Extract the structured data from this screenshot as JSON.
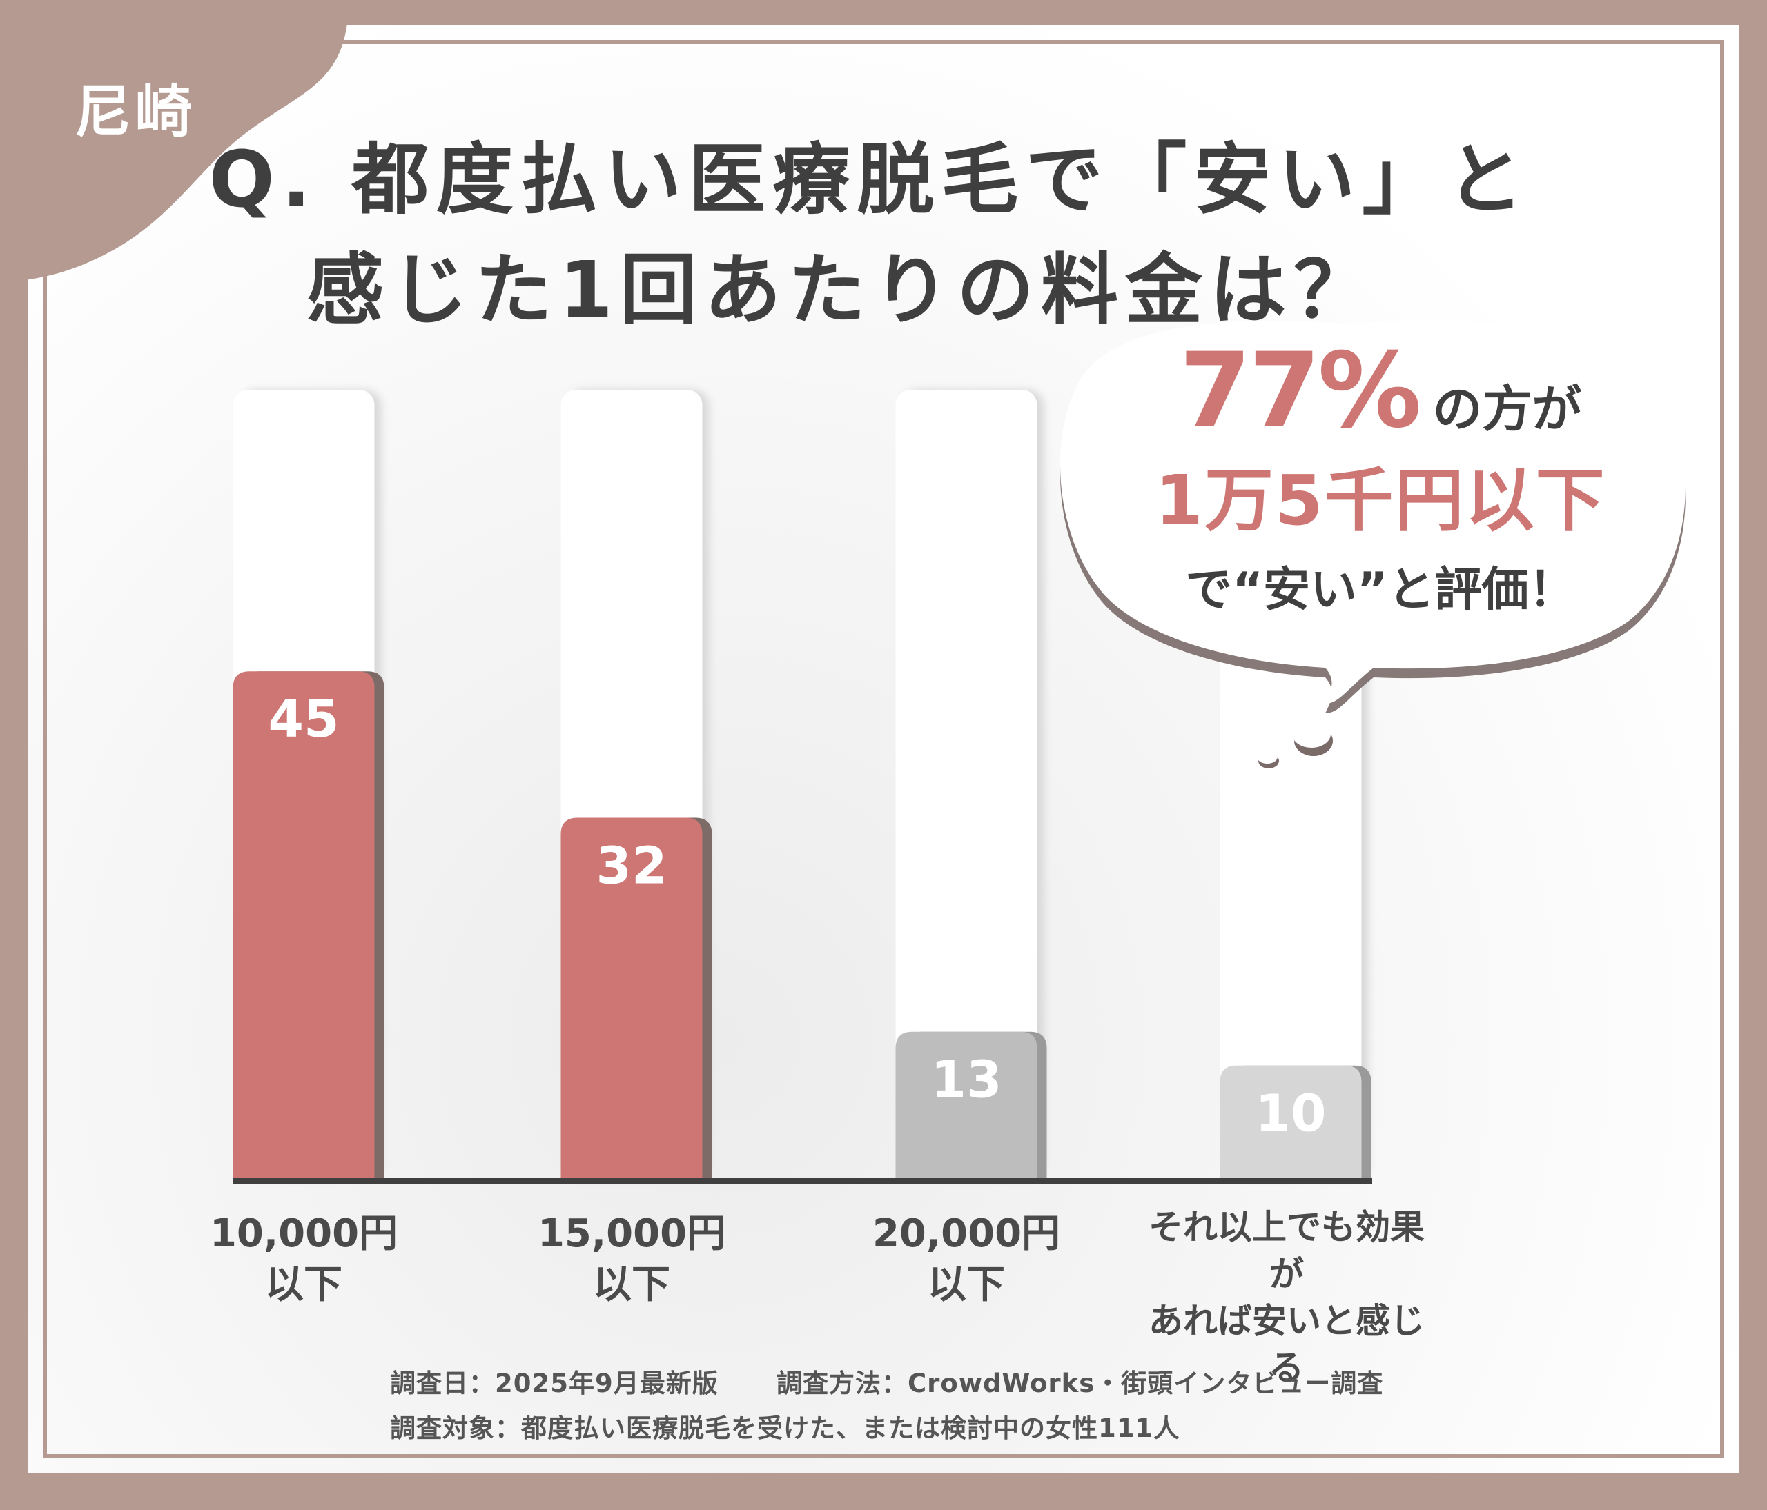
{
  "region_label": "尼崎",
  "title": {
    "line1": "Q. 都度払い医療脱毛で「安い」と",
    "line2": "感じた1回あたりの料金は？"
  },
  "callout": {
    "percent": "77%",
    "line1_rest": "の方が",
    "line2": "1万5千円以下",
    "line3": "で“安い”と評価！"
  },
  "chart_data": {
    "type": "bar",
    "categories": [
      "10,000円以下",
      "15,000円以下",
      "20,000円以下",
      "それ以上でも効果があれば安いと感じる"
    ],
    "category_lines": [
      [
        "10,000円",
        "以下"
      ],
      [
        "15,000円",
        "以下"
      ],
      [
        "20,000円",
        "以下"
      ],
      [
        "それ以上でも効果が",
        "あれば安いと感じる"
      ]
    ],
    "values": [
      45,
      32,
      13,
      10
    ],
    "value_labels": [
      "45",
      "32",
      "13",
      "10"
    ],
    "ylim": [
      0,
      100
    ],
    "grid": false,
    "colors": [
      "#cd7673",
      "#cd7673",
      "#bdbdbd",
      "#d6d6d6"
    ]
  },
  "footer": {
    "line1a": "調査日：2025年9月最新版",
    "line1b": "調査方法：CrowdWorks・街頭インタビュー調査",
    "line2": "調査対象：都度払い医療脱毛を受けた、または検討中の女性111人"
  },
  "colors": {
    "frame": "#b49a91",
    "accent": "#cd7673",
    "text": "#3f3f3f"
  }
}
